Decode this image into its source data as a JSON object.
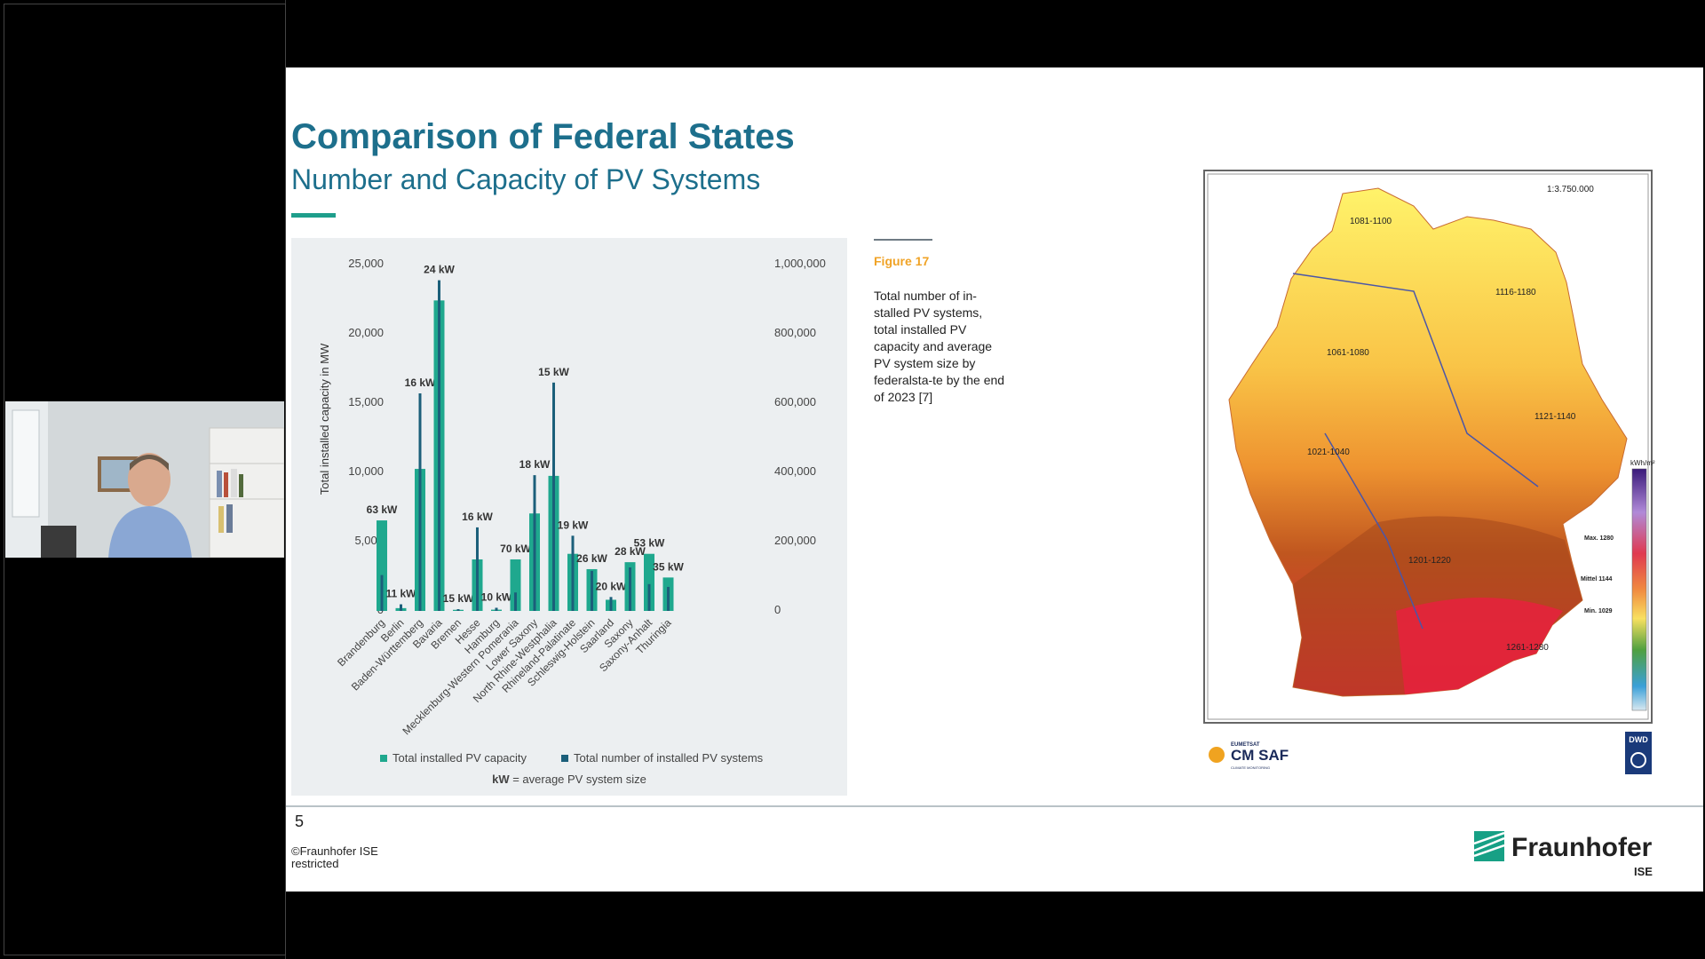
{
  "slide": {
    "title": "Comparison of Federal States",
    "subtitle": "Number and Capacity of PV Systems",
    "page_number": "5",
    "copyright_line1": "©Fraunhofer ISE",
    "copyright_line2": "restricted",
    "logo_text": "Fraunhofer",
    "logo_sub": "ISE",
    "accent_color": "#1d6f8c"
  },
  "figure": {
    "label": "Figure 17",
    "caption": "Total number of in-stalled PV systems, total installed PV capacity and average PV system size by federalsta-te by the end of 2023 [7]"
  },
  "map": {
    "scale": "1:3.750.000",
    "regions": [
      "1081-1100",
      "1116-1180",
      "1061-1080",
      "1121-1140",
      "1021-1040",
      "1201-1220",
      "1261-1280"
    ],
    "legend_unit": "kWh/m²",
    "legend_max": "Max. 1280",
    "legend_mean": "Mittel 1144",
    "legend_min": "Min. 1029",
    "brand_left_top": "EUMETSAT",
    "brand_left": "CM SAF",
    "brand_left_sub": "CLIMATE MONITORING",
    "brand_right": "DWD"
  },
  "chart_data": {
    "type": "bar",
    "title": "",
    "ylabel": "Total installed capacity in MW",
    "y2label": "",
    "ylim": [
      0,
      25000
    ],
    "y2lim": [
      0,
      1000000
    ],
    "yticks": [
      "25,000",
      "20,000",
      "15,000",
      "10,000",
      "5,000",
      "0"
    ],
    "y2ticks": [
      "1,000,000",
      "800,000",
      "600,000",
      "400,000",
      "200,000",
      "0"
    ],
    "categories": [
      "Brandenburg",
      "Berlin",
      "Baden-Württemberg",
      "Bavaria",
      "Bremen",
      "Hesse",
      "Hamburg",
      "Mecklenburg-Western Pomerania",
      "Lower Saxony",
      "North Rhine-Westphalia",
      "Rhineland-Palatinate",
      "Schleswig-Holstein",
      "Saarland",
      "Saxony",
      "Saxony-Anhalt",
      "Thuringia"
    ],
    "series": [
      {
        "name": "Total installed PV capacity",
        "axis": "left",
        "color": "#1fa88e",
        "values": [
          6500,
          200,
          10200,
          22300,
          80,
          3700,
          90,
          3700,
          7000,
          9700,
          4100,
          3000,
          800,
          3500,
          4100,
          2400
        ]
      },
      {
        "name": "Total number of installed PV systems",
        "axis": "right",
        "color": "#1b5f7a",
        "values": [
          103000,
          19000,
          625000,
          950000,
          5000,
          240000,
          9000,
          53000,
          390000,
          656000,
          216000,
          115000,
          40000,
          125000,
          77000,
          69000
        ]
      }
    ],
    "bar_labels": [
      "63 kW",
      "11 kW",
      "16 kW",
      "24 kW",
      "15 kW",
      "16 kW",
      "10 kW",
      "70 kW",
      "18 kW",
      "15 kW",
      "19 kW",
      "26 kW",
      "20 kW",
      "28 kW",
      "53 kW",
      "35 kW"
    ],
    "legend": [
      "Total installed PV capacity",
      "Total number of installed PV systems"
    ],
    "legend_placement": "bottom",
    "note_bold": "kW",
    "note_rest": " = average PV system size",
    "grid": false
  }
}
